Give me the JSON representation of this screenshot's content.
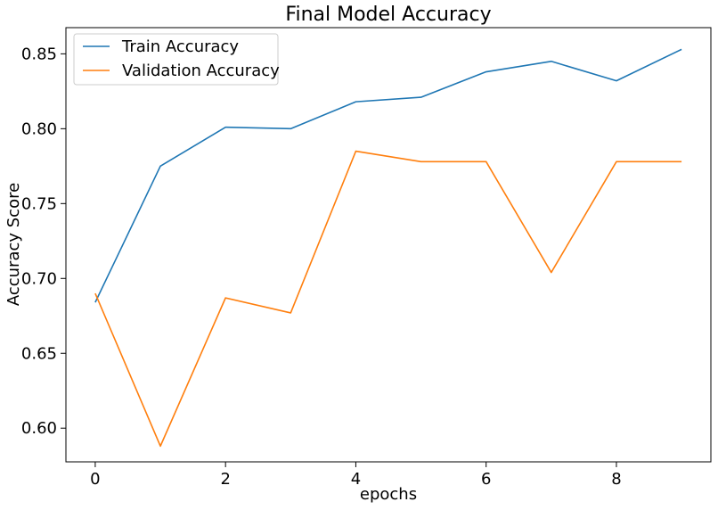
{
  "chart_data": {
    "type": "line",
    "title": "Final Model Accuracy",
    "xlabel": "epochs",
    "ylabel": "Accuracy Score",
    "x": [
      0,
      1,
      2,
      3,
      4,
      5,
      6,
      7,
      8,
      9
    ],
    "xlim": [
      -0.45,
      9.45
    ],
    "ylim": [
      0.5775,
      0.8675
    ],
    "xticks": [
      0,
      2,
      4,
      6,
      8
    ],
    "yticks": [
      0.6,
      0.65,
      0.7,
      0.75,
      0.8,
      0.85
    ],
    "xtick_labels": [
      "0",
      "2",
      "4",
      "6",
      "8"
    ],
    "ytick_labels": [
      "0.60",
      "0.65",
      "0.70",
      "0.75",
      "0.80",
      "0.85"
    ],
    "grid": false,
    "legend_position": "top-left",
    "series": [
      {
        "name": "Train Accuracy",
        "color": "#1f77b4",
        "values": [
          0.684,
          0.775,
          0.801,
          0.8,
          0.818,
          0.821,
          0.838,
          0.845,
          0.832,
          0.853
        ]
      },
      {
        "name": "Validation Accuracy",
        "color": "#ff7f0e",
        "values": [
          0.69,
          0.588,
          0.687,
          0.677,
          0.785,
          0.778,
          0.778,
          0.704,
          0.778,
          0.778
        ]
      }
    ]
  }
}
